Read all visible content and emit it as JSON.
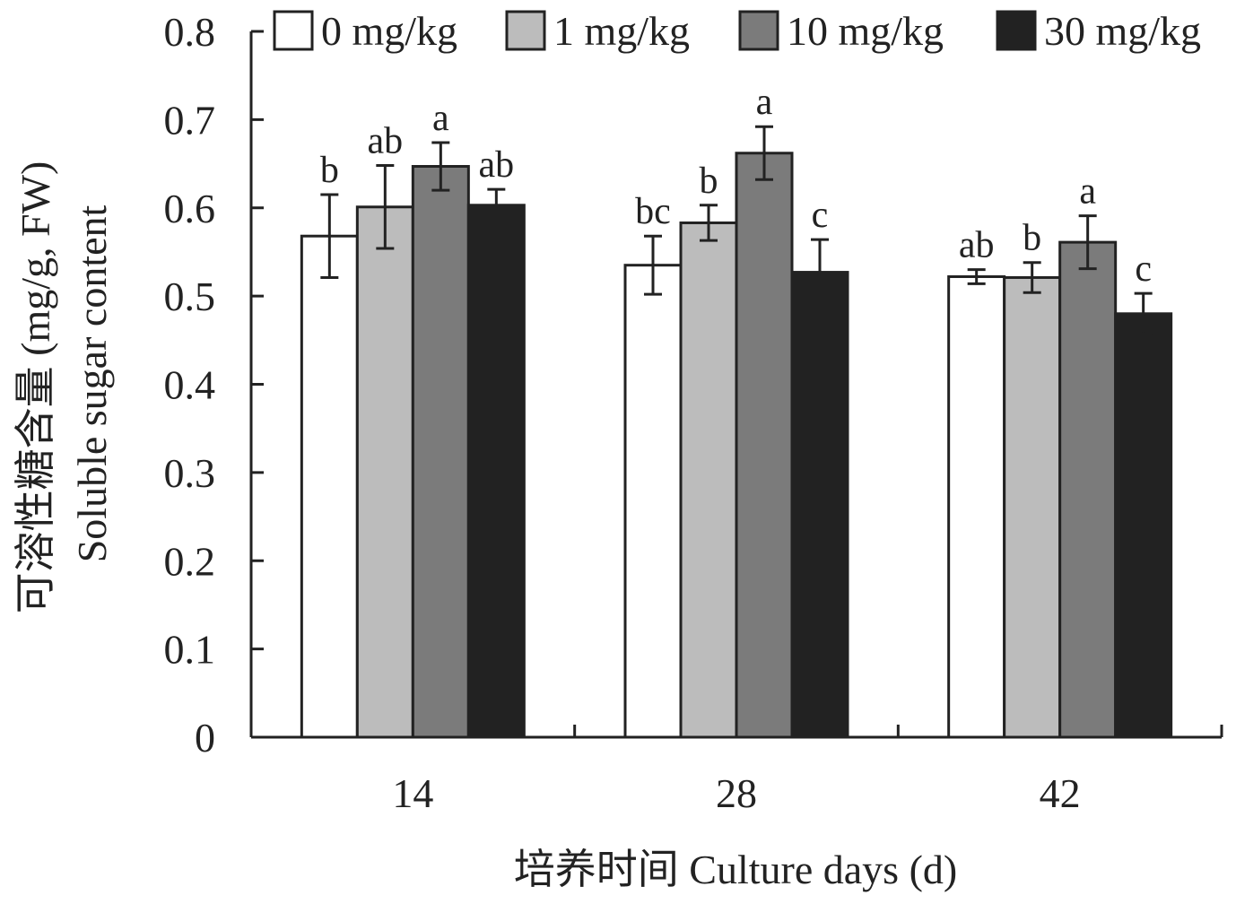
{
  "chart_data": {
    "type": "bar",
    "categories": [
      "14",
      "28",
      "42"
    ],
    "xlabel": "培养时间 Culture days (d)",
    "ylabel_cn": "可溶性糖含量 (mg/g, FW)",
    "ylabel_en": "Soluble sugar content",
    "ylim": [
      0,
      0.8
    ],
    "yticks": [
      "0",
      "0.1",
      "0.2",
      "0.3",
      "0.4",
      "0.5",
      "0.6",
      "0.7",
      "0.8"
    ],
    "legend_position": "top",
    "grid": false,
    "series": [
      {
        "name": "0 mg/kg",
        "color": "#ffffff",
        "values": [
          0.568,
          0.535,
          0.522
        ],
        "errors": [
          0.047,
          0.033,
          0.008
        ],
        "labels": [
          "b",
          "bc",
          "ab"
        ]
      },
      {
        "name": "1 mg/kg",
        "color": "#bcbcbc",
        "values": [
          0.601,
          0.583,
          0.521
        ],
        "errors": [
          0.047,
          0.02,
          0.017
        ],
        "labels": [
          "ab",
          "b",
          "b"
        ]
      },
      {
        "name": "10 mg/kg",
        "color": "#7b7b7b",
        "values": [
          0.647,
          0.662,
          0.561
        ],
        "errors": [
          0.027,
          0.03,
          0.03
        ],
        "labels": [
          "a",
          "a",
          "a"
        ]
      },
      {
        "name": "30 mg/kg",
        "color": "#222222",
        "values": [
          0.603,
          0.527,
          0.48
        ],
        "errors": [
          0.018,
          0.037,
          0.023
        ],
        "labels": [
          "ab",
          "c",
          "c"
        ]
      }
    ]
  }
}
